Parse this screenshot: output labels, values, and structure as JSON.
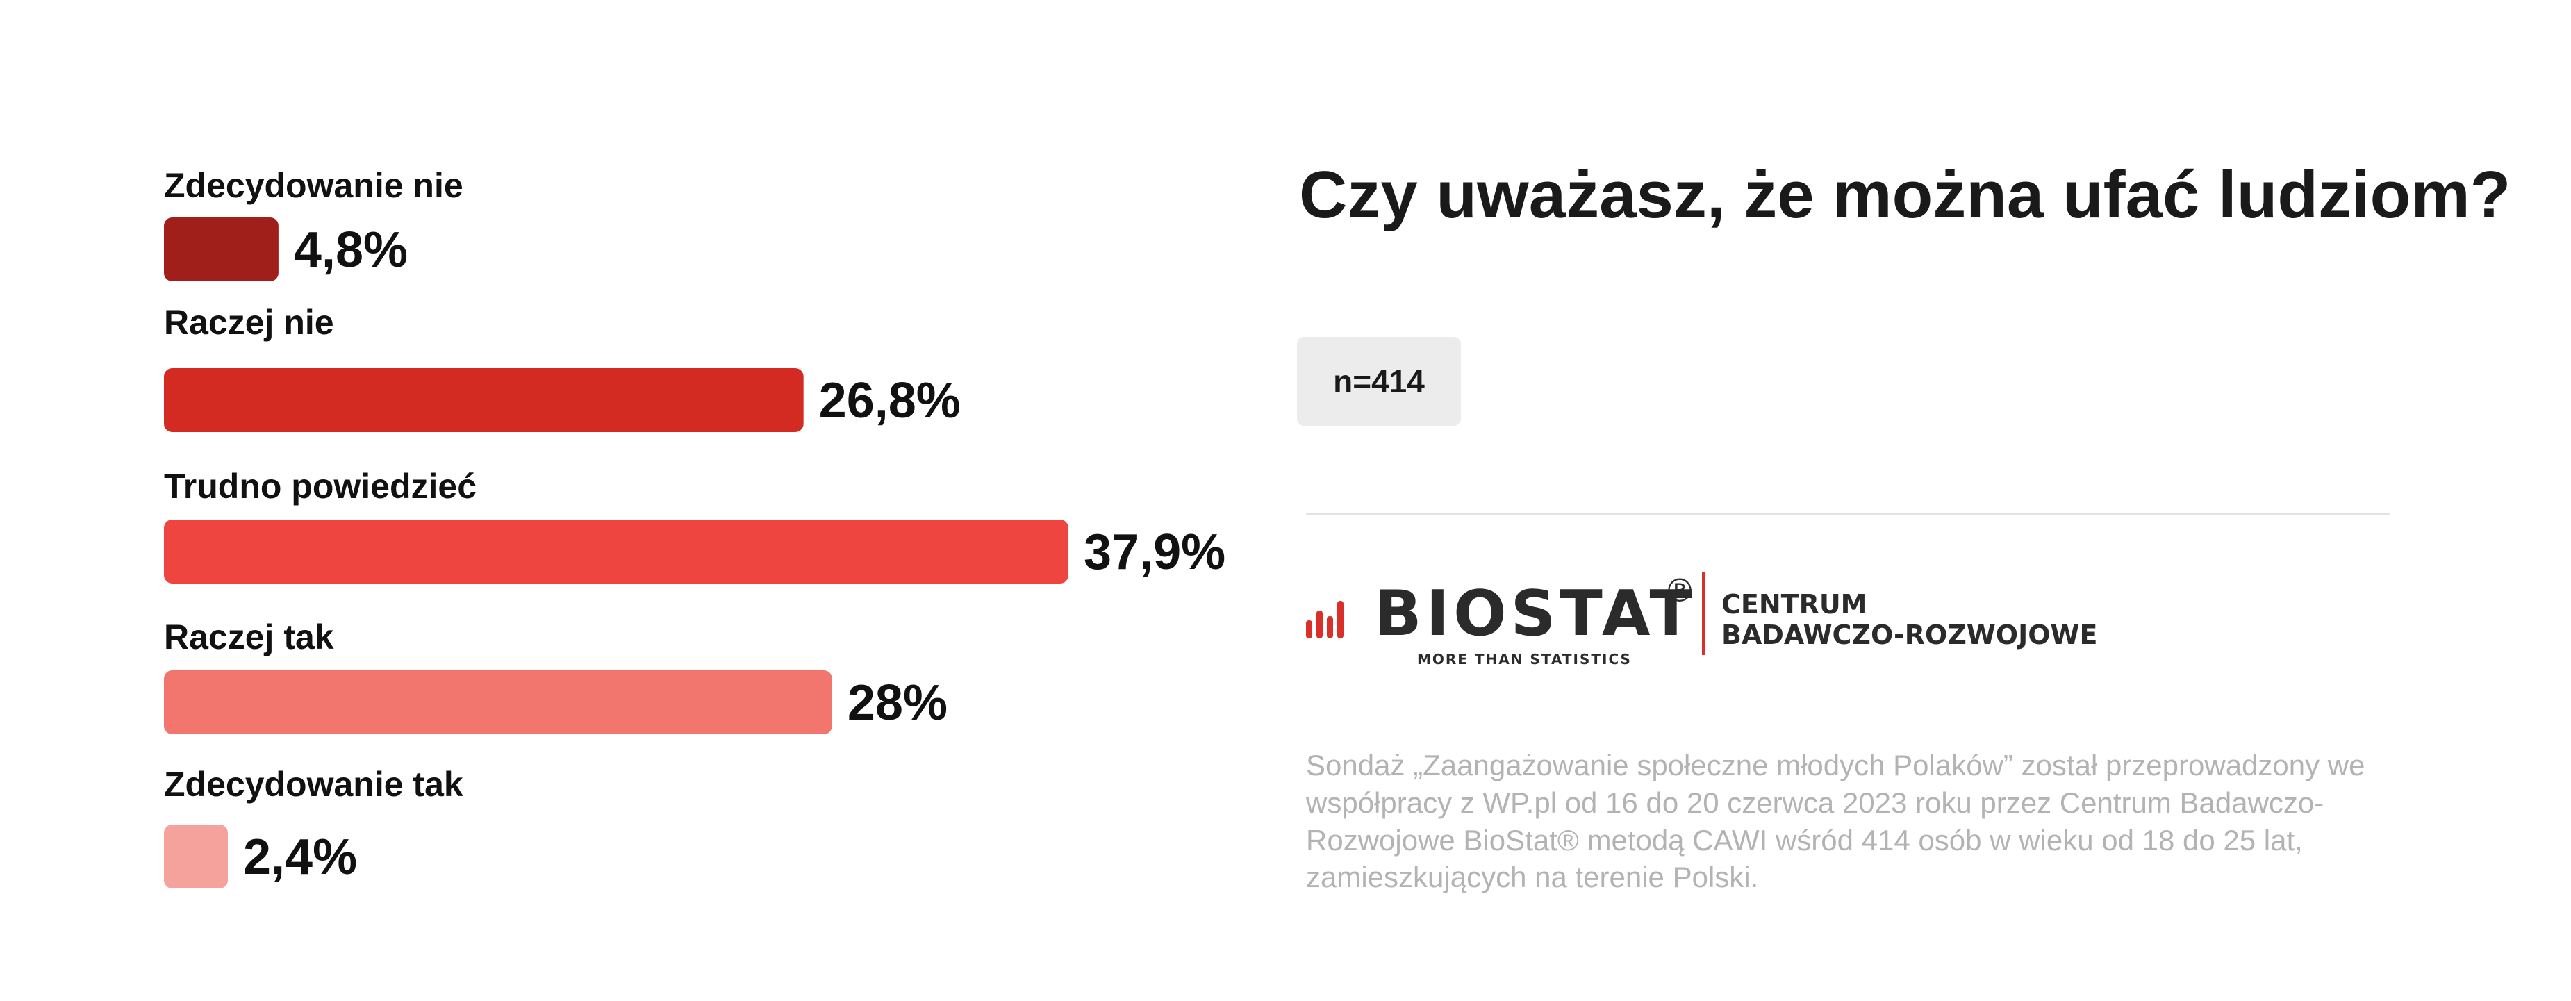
{
  "title": "Czy uważasz, że można ufać ludziom?",
  "sample": "n=414",
  "chart_data": {
    "type": "bar",
    "orientation": "horizontal",
    "title": "Czy uważasz, że można ufać ludziom?",
    "categories": [
      "Zdecydowanie nie",
      "Raczej nie",
      "Trudno powiedzieć",
      "Raczej tak",
      "Zdecydowanie tak"
    ],
    "values": [
      4.8,
      26.8,
      37.9,
      28,
      2.4
    ],
    "value_labels": [
      "4,8%",
      "26,8%",
      "37,9%",
      "28%",
      "2,4%"
    ],
    "colors": [
      "#a01f1a",
      "#d32b22",
      "#ef4540",
      "#f2756e",
      "#f5a19c"
    ],
    "unit": "%",
    "xlim": [
      0,
      37.9
    ],
    "grid": false,
    "legend": "none"
  },
  "logo": {
    "wordmark": "BIOSTAT",
    "registered_mark": "®",
    "tagline": "MORE THAN STATISTICS",
    "org_line1": "CENTRUM",
    "org_line2": "BADAWCZO-ROZWOJOWE",
    "accent_color": "#d9302a"
  },
  "note": "Sondaż  „Zaangażowanie społeczne młodych Polaków” został przeprowadzony we współpracy z WP.pl od 16 do 20 czerwca 2023 roku przez Centrum Badawczo-Rozwojowe BioStat® metodą CAWI wśród 414 osób w wieku od 18 do 25 lat, zamieszkujących na terenie Polski."
}
